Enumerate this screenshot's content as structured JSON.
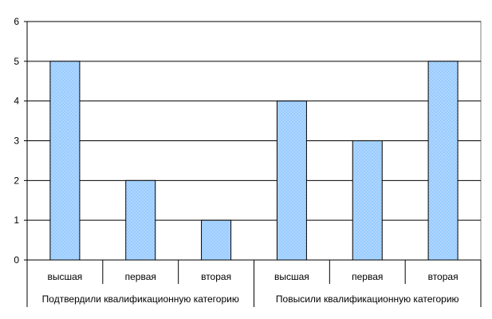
{
  "chart_data": {
    "type": "bar",
    "groups": [
      {
        "label": "Подтвердили квалификационную категорию",
        "categories": [
          "высшая",
          "первая",
          "вторая"
        ]
      },
      {
        "label": "Повысили квалификационную категорию",
        "categories": [
          "высшая",
          "первая",
          "вторая"
        ]
      }
    ],
    "categories": [
      "высшая",
      "первая",
      "вторая",
      "высшая",
      "первая",
      "вторая"
    ],
    "values": [
      5,
      2,
      1,
      4,
      3,
      5
    ],
    "ylim": [
      0,
      6
    ],
    "yticks": [
      "0",
      "1",
      "2",
      "3",
      "4",
      "5",
      "6"
    ],
    "title": "",
    "xlabel": "",
    "ylabel": "",
    "grid": true,
    "legend": "none",
    "bar_fill": "#99ccff",
    "bar_pattern": "dotted",
    "bar_stroke": "#000000",
    "gridline_color": "#000000"
  }
}
